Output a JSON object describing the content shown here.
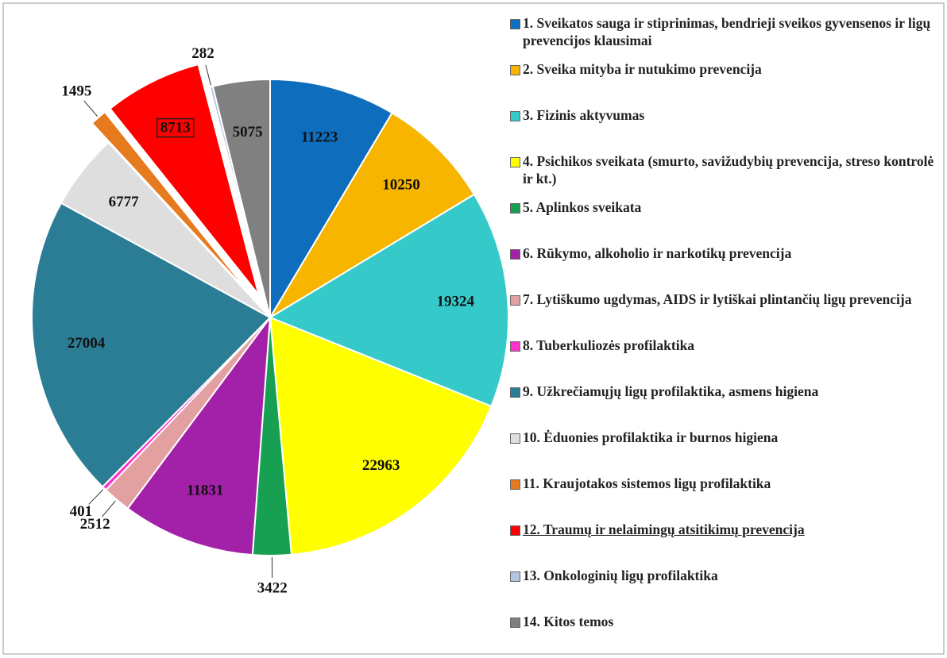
{
  "chart_data": {
    "type": "pie",
    "categories": [
      "1. Sveikatos sauga ir stiprinimas, bendrieji sveikos gyvensenos ir ligų prevencijos klausimai",
      "2. Sveika mityba ir nutukimo prevencija",
      "3. Fizinis aktyvumas",
      "4. Psichikos sveikata (smurto, savižudybių prevencija, streso kontrolė ir kt.)",
      "5. Aplinkos sveikata",
      "6. Rūkymo, alkoholio ir narkotikų prevencija",
      "7. Lytiškumo ugdymas, AIDS ir lytiškai plintančių ligų prevencija",
      "8. Tuberkuliozės profilaktika",
      "9. Užkrečiamųjų ligų profilaktika, asmens higiena",
      "10. Ėduonies profilaktika ir burnos higiena",
      "11. Kraujotakos sistemos ligų profilaktika",
      "12. Traumų ir nelaimingų atsitikimų prevencija",
      "13. Onkologinių ligų profilaktika",
      "14. Kitos temos"
    ],
    "values": [
      11223,
      10250,
      19324,
      22963,
      3422,
      11831,
      2512,
      401,
      27004,
      6777,
      1495,
      8713,
      282,
      5075
    ],
    "colors": [
      "#0f6dbd",
      "#f7b500",
      "#35c9c9",
      "#ffff00",
      "#17a052",
      "#a321a8",
      "#e3a0a0",
      "#ff33cc",
      "#2b7d95",
      "#dedede",
      "#e57a1f",
      "#ff0000",
      "#b3c6e0",
      "#808080"
    ],
    "explode": [
      10,
      11
    ],
    "highlight": 11,
    "legend": "right"
  }
}
